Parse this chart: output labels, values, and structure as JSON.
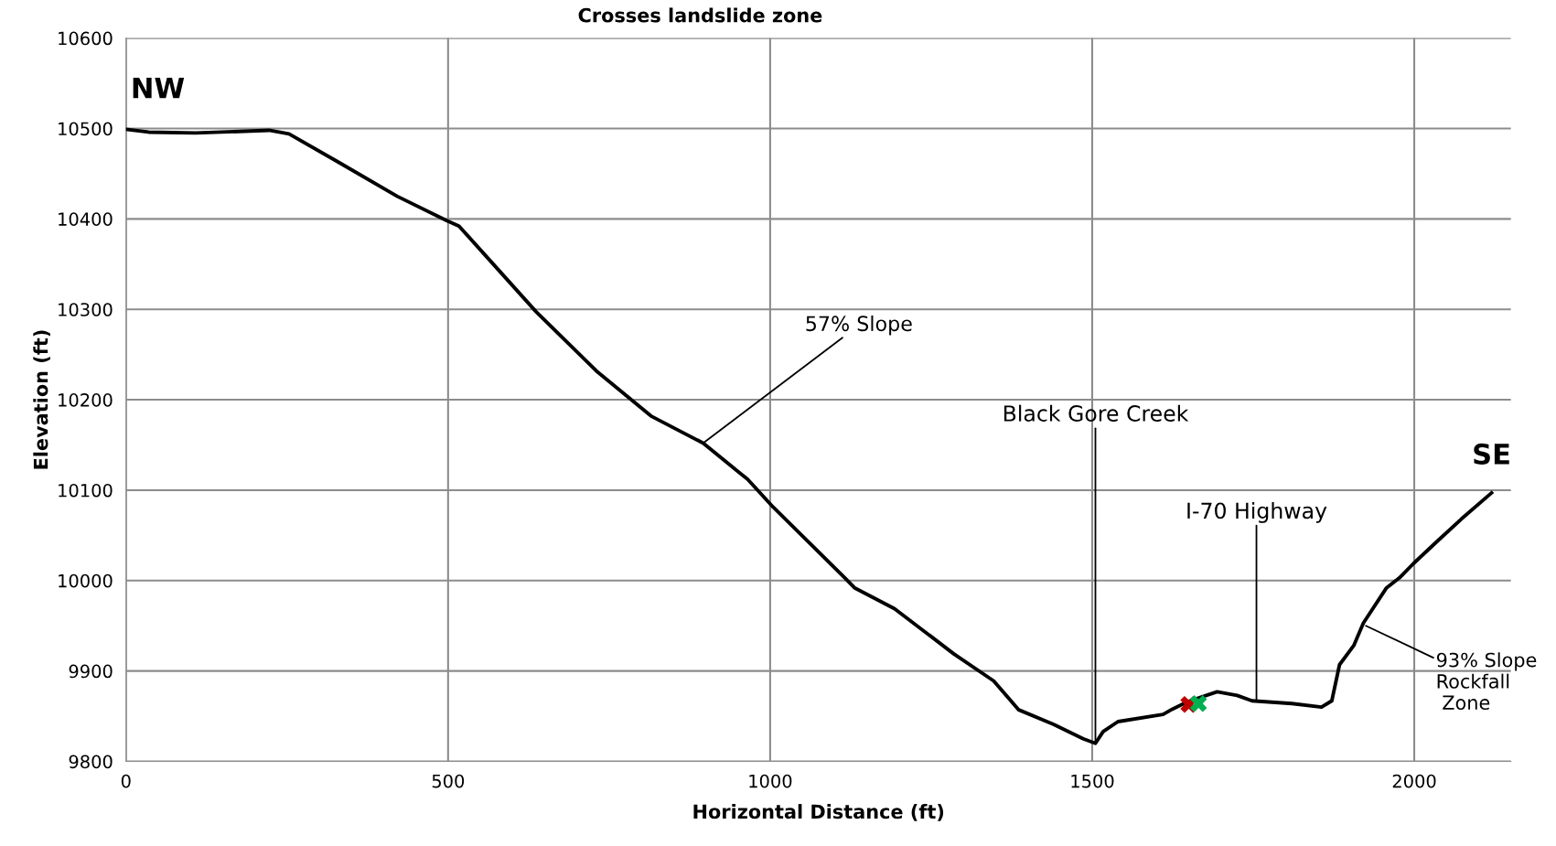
{
  "chart_data": {
    "type": "line",
    "title": "Crosses landslide zone",
    "xlabel": "Horizontal Distance (ft)",
    "ylabel": "Elevation (ft)",
    "xlim": [
      0,
      2150
    ],
    "xticks": [
      0,
      500,
      1000,
      1500,
      2000
    ],
    "ylim": [
      9800,
      10600
    ],
    "yticks": [
      9800,
      9900,
      10000,
      10100,
      10200,
      10300,
      10400,
      10500,
      10600
    ],
    "grid": true,
    "line_style": "solid",
    "series": [
      {
        "color": "#000000",
        "marker": "none",
        "x": [
          0,
          35,
          108,
          222,
          253,
          329,
          421,
          498,
          517,
          560,
          637,
          730,
          815,
          896,
          946,
          965,
          1005,
          1116,
          1131,
          1193,
          1285,
          1347,
          1386,
          1440,
          1486,
          1505,
          1517,
          1540,
          1610,
          1625,
          1648,
          1694,
          1725,
          1748,
          1810,
          1856,
          1872,
          1884,
          1906,
          1921,
          1957,
          1977,
          1999,
          2035,
          2073,
          2120
        ],
        "values": [
          10499,
          10496,
          10495,
          10498,
          10494,
          10463,
          10425,
          10398,
          10392,
          10358,
          10297,
          10232,
          10182,
          10152,
          10123,
          10112,
          10081,
          10003,
          9992,
          9969,
          9919,
          9889,
          9857,
          9841,
          9825,
          9820,
          9833,
          9844,
          9852,
          9858,
          9866,
          9877,
          9873,
          9867,
          9864,
          9860,
          9867,
          9907,
          9928,
          9953,
          9992,
          10003,
          10019,
          10043,
          10068,
          10097
        ]
      },
      {
        "type": "scatter",
        "color": "#c00000",
        "marker": "cross",
        "x": [
          1650
        ],
        "values": [
          9863
        ]
      },
      {
        "type": "scatter",
        "color": "#00b050",
        "marker": "cross",
        "x": [
          1665
        ],
        "values": [
          9864
        ]
      }
    ],
    "annotations": [
      {
        "text": "NW",
        "x": 0,
        "y": 10499
      },
      {
        "text": "SE",
        "x": 2120,
        "y": 10097
      },
      {
        "text": "57% Slope",
        "x": 896,
        "y": 10152
      },
      {
        "text": "Black Gore Creek",
        "x": 1505,
        "y": 9820
      },
      {
        "text": "I-70 Highway",
        "x": 1755,
        "y": 9867
      },
      {
        "text": "93% Slope\nRockfall\n Zone",
        "x": 1925,
        "y": 9950
      }
    ]
  }
}
